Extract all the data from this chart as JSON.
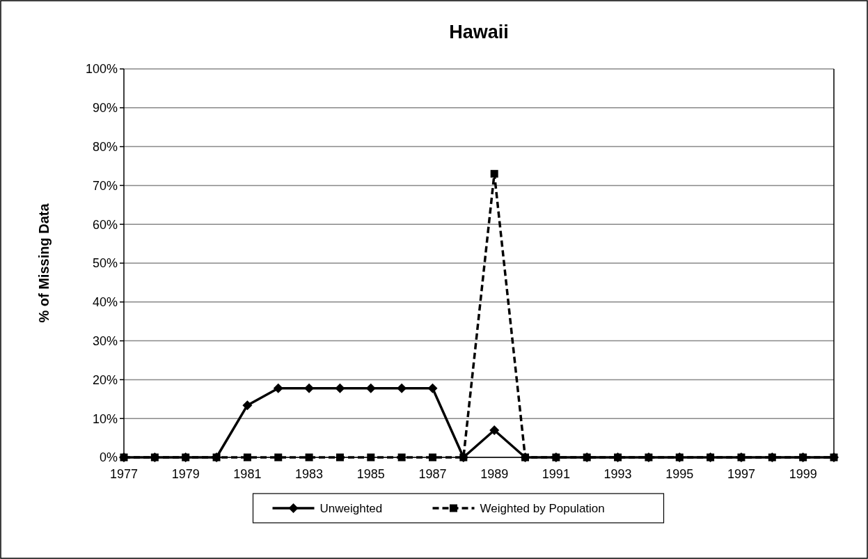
{
  "chart_data": {
    "type": "line",
    "title": "Hawaii",
    "ylabel": "% of Missing Data",
    "categories": [
      "1977",
      null,
      "1979",
      null,
      "1981",
      null,
      "1983",
      null,
      "1985",
      null,
      "1987",
      null,
      "1989",
      null,
      "1991",
      null,
      "1993",
      null,
      "1995",
      null,
      "1997",
      null,
      "1999",
      null
    ],
    "series": [
      {
        "name": "Unweighted",
        "color": "#000000",
        "marker": "diamond",
        "line_style": "solid",
        "values": [
          0,
          0,
          0,
          0,
          13.4,
          17.8,
          17.8,
          17.8,
          17.8,
          17.8,
          17.8,
          0,
          7,
          0,
          0,
          0,
          0,
          0,
          0,
          0,
          0,
          0,
          0,
          0
        ]
      },
      {
        "name": "Weighted by Population",
        "color": "#000000",
        "marker": "square",
        "line_style": "dashed",
        "values": [
          0,
          0,
          0,
          0,
          0,
          0,
          0,
          0,
          0,
          0,
          0,
          0,
          73,
          0,
          0,
          0,
          0,
          0,
          0,
          0,
          0,
          0,
          0,
          0
        ]
      }
    ],
    "ylim": [
      0,
      100
    ],
    "yticks": [
      {
        "value": 0,
        "label": "0%"
      },
      {
        "value": 10,
        "label": "10%"
      },
      {
        "value": 20,
        "label": "20%"
      },
      {
        "value": 30,
        "label": "30%"
      },
      {
        "value": 40,
        "label": "40%"
      },
      {
        "value": 50,
        "label": "50%"
      },
      {
        "value": 60,
        "label": "60%"
      },
      {
        "value": 70,
        "label": "70%"
      },
      {
        "value": 80,
        "label": "80%"
      },
      {
        "value": 90,
        "label": "90%"
      },
      {
        "value": 100,
        "label": "100%"
      }
    ],
    "grid": "y",
    "legend": "bottom"
  }
}
